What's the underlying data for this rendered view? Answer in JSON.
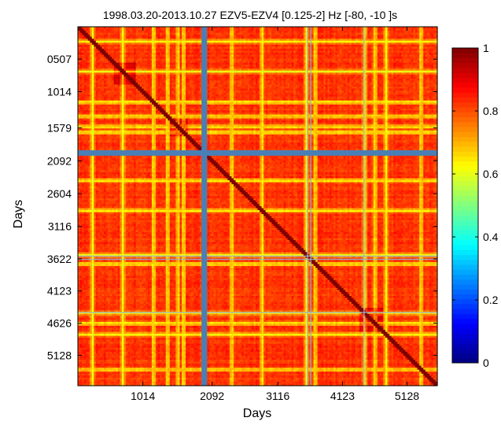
{
  "chart_data": {
    "type": "heatmap",
    "title": "1998.03.20-2013.10.27 EZV5-EZV4 [0.125-2] Hz [-80, -10 ]s",
    "xlabel": "Days",
    "ylabel": "Days",
    "x_range": [
      1,
      5600
    ],
    "y_range": [
      1,
      5600
    ],
    "x_ticks": [
      1014,
      2092,
      3116,
      4123,
      5128
    ],
    "x_tick_labels": [
      "1014",
      "2092",
      "3116",
      "4123",
      "5128"
    ],
    "y_ticks": [
      507,
      1014,
      1579,
      2092,
      2604,
      3116,
      3622,
      4123,
      4626,
      5128
    ],
    "y_tick_labels": [
      "0507",
      "1014",
      "1579",
      "2092",
      "2604",
      "3116",
      "3622",
      "4123",
      "4626",
      "5128"
    ],
    "y_direction": "top-down",
    "colorbar": {
      "colormap": "jet",
      "range": [
        0,
        1
      ],
      "ticks": [
        0,
        0.2,
        0.4,
        0.6,
        0.8,
        1
      ],
      "tick_labels": [
        "0",
        "0.2",
        "0.4",
        "0.6",
        "0.8",
        "1"
      ]
    },
    "dominant_value_range": [
      0.75,
      0.9
    ],
    "diagonal_value": 1.0,
    "missing_data_value": 0,
    "missing_day_bands": [
      1970
    ],
    "weak_stripe_days": [
      230,
      700,
      1180,
      1400,
      1560,
      1650,
      2400,
      2870,
      3560,
      3700,
      4470,
      4630,
      4800,
      5350
    ],
    "gap_lines": [
      3570,
      3620,
      4450
    ],
    "high_correlation_blocks": [
      [
        550,
        900
      ],
      [
        1430,
        1700
      ],
      [
        4380,
        4750
      ]
    ]
  }
}
